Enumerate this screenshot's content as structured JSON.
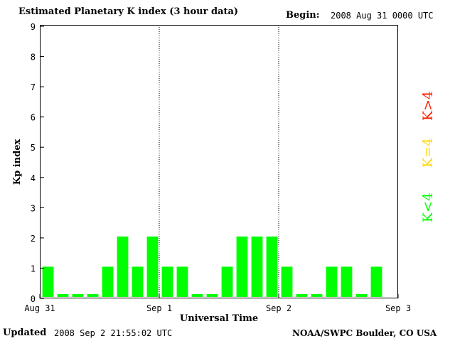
{
  "header": {
    "title": "Estimated Planetary K index (3 hour data)",
    "begin_label": "Begin:",
    "begin_value": "2008 Aug 31 0000 UTC"
  },
  "footer": {
    "updated_label": "Updated",
    "updated_value": "2008 Sep  2 21:55:02 UTC",
    "credit": "NOAA/SWPC Boulder, CO USA"
  },
  "legend": {
    "items": [
      {
        "label": "K<4",
        "color": "#00ff00"
      },
      {
        "label": "K=4",
        "color": "#ffd700"
      },
      {
        "label": "K>4",
        "color": "#ff2000"
      }
    ]
  },
  "chart_data": {
    "type": "bar",
    "ylabel": "Kp index",
    "xlabel": "Universal Time",
    "ylim": [
      0,
      9
    ],
    "yticks": [
      0,
      1,
      2,
      3,
      4,
      5,
      6,
      7,
      8,
      9
    ],
    "xticks": [
      "Aug 31",
      "Sep 1",
      "Sep 2",
      "Sep 3"
    ],
    "day_dividers": [
      "Sep 1",
      "Sep 2"
    ],
    "bars_per_day": 8,
    "values": [
      1,
      0,
      0,
      0,
      1,
      2,
      1,
      2,
      1,
      1,
      0,
      0,
      1,
      2,
      2,
      2,
      1,
      0,
      0,
      1,
      1,
      0,
      1
    ],
    "bar_color": "#00ff00",
    "grid": false
  }
}
